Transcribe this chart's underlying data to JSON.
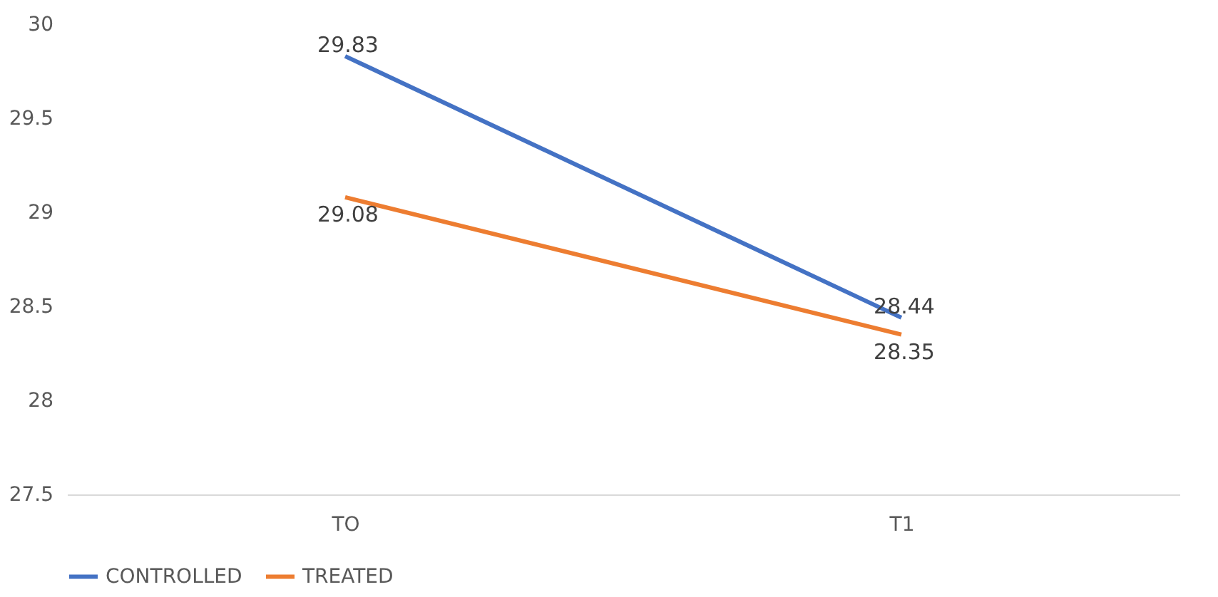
{
  "chart_data": {
    "type": "line",
    "categories": [
      "TO",
      "T1"
    ],
    "series": [
      {
        "name": "CONTROLLED",
        "color": "#4472c4",
        "values": [
          29.83,
          28.44
        ]
      },
      {
        "name": "TREATED",
        "color": "#ed7d31",
        "values": [
          29.08,
          28.35
        ]
      }
    ],
    "ylim": [
      27.5,
      30
    ],
    "yticks": [
      27.5,
      28,
      28.5,
      29,
      29.5,
      30
    ],
    "grid": false,
    "legend": "bottom",
    "data_labels": true,
    "marker": "none",
    "line_style": "solid"
  }
}
